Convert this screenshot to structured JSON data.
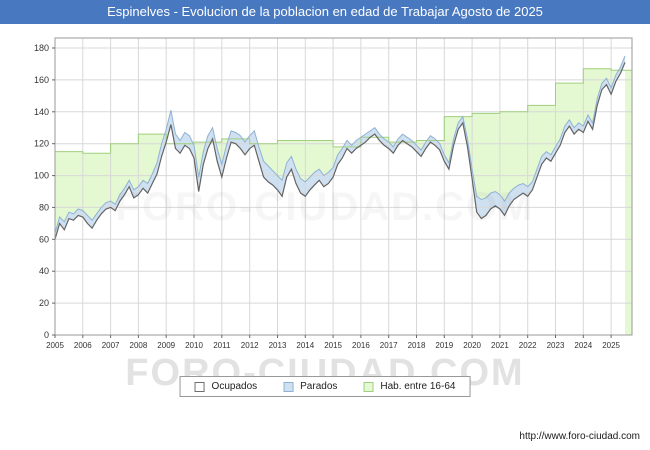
{
  "header": {
    "title": "Espinelves - Evolucion de la poblacion en edad de Trabajar Agosto de 2025",
    "bar_color": "#4878c0"
  },
  "watermark": {
    "text": "FORO-CIUDAD.COM"
  },
  "footer": {
    "url": "http://www.foro-ciudad.com"
  },
  "legend": [
    {
      "label": "Ocupados",
      "fill": "#ffffff",
      "border": "#6e6e6e"
    },
    {
      "label": "Parados",
      "fill": "#cfe0f0",
      "border": "#8fb2d4"
    },
    {
      "label": "Hab. entre 16-64",
      "fill": "#e4f8d2",
      "border": "#a0cf7f"
    }
  ],
  "chart_data": {
    "type": "area",
    "title": "Espinelves - Evolucion de la poblacion en edad de Trabajar Agosto de 2025",
    "xlabel": "",
    "ylabel": "",
    "ylim": [
      0,
      180
    ],
    "yticks": [
      0,
      20,
      40,
      60,
      80,
      100,
      120,
      140,
      160,
      180
    ],
    "xticks": [
      2005,
      2006,
      2007,
      2008,
      2009,
      2010,
      2011,
      2012,
      2013,
      2014,
      2015,
      2016,
      2017,
      2018,
      2019,
      2020,
      2021,
      2022,
      2023,
      2024,
      2025
    ],
    "grid": true,
    "legend_position": "bottom",
    "x_start_year": 2005,
    "x_points_per_year": 6,
    "x_end_label": "Agosto 2025",
    "series": [
      {
        "name": "Ocupados",
        "render": "area-line",
        "fill": "#ffffff",
        "line": "#646464",
        "values": [
          60,
          70,
          66,
          73,
          72,
          75,
          74,
          70,
          67,
          72,
          76,
          79,
          80,
          78,
          84,
          88,
          93,
          86,
          88,
          92,
          89,
          95,
          101,
          112,
          121,
          132,
          117,
          114,
          119,
          117,
          111,
          90,
          107,
          117,
          123,
          109,
          99,
          111,
          121,
          120,
          117,
          113,
          117,
          119,
          109,
          99,
          96,
          94,
          91,
          87,
          99,
          104,
          95,
          89,
          87,
          91,
          94,
          97,
          93,
          95,
          99,
          107,
          111,
          117,
          114,
          117,
          119,
          121,
          124,
          126,
          122,
          119,
          117,
          114,
          119,
          122,
          120,
          118,
          115,
          112,
          117,
          121,
          119,
          116,
          109,
          104,
          119,
          129,
          133,
          118,
          98,
          77,
          73,
          75,
          79,
          81,
          79,
          75,
          81,
          85,
          87,
          89,
          87,
          91,
          99,
          107,
          111,
          109,
          114,
          119,
          127,
          131,
          126,
          129,
          127,
          134,
          129,
          144,
          154,
          157,
          151,
          159,
          164,
          171
        ]
      },
      {
        "name": "Parados",
        "render": "stacked-band-above-ocupados",
        "fill": "#cfe0f0",
        "line": "#8fb2d4",
        "values": [
          4,
          4,
          5,
          4,
          4,
          4,
          4,
          5,
          5,
          4,
          4,
          4,
          4,
          4,
          4,
          4,
          4,
          5,
          5,
          5,
          6,
          6,
          7,
          8,
          8,
          9,
          9,
          8,
          8,
          8,
          8,
          9,
          8,
          8,
          7,
          8,
          8,
          8,
          7,
          7,
          8,
          8,
          8,
          9,
          9,
          10,
          10,
          9,
          9,
          10,
          9,
          8,
          9,
          9,
          9,
          8,
          8,
          7,
          7,
          7,
          6,
          6,
          6,
          5,
          5,
          5,
          5,
          5,
          4,
          4,
          4,
          4,
          4,
          4,
          4,
          4,
          4,
          4,
          4,
          4,
          4,
          4,
          4,
          4,
          4,
          4,
          4,
          4,
          4,
          5,
          6,
          10,
          12,
          11,
          10,
          9,
          9,
          9,
          8,
          7,
          7,
          6,
          6,
          5,
          5,
          5,
          4,
          4,
          4,
          4,
          4,
          4,
          4,
          4,
          4,
          4,
          4,
          4,
          4,
          4,
          4,
          4,
          4,
          4
        ]
      },
      {
        "name": "Hab. entre 16-64",
        "render": "step-area-annual",
        "fill": "#e4f8d2",
        "line": "#a0cf7f",
        "years": [
          2005,
          2006,
          2007,
          2008,
          2009,
          2010,
          2011,
          2012,
          2013,
          2014,
          2015,
          2016,
          2017,
          2018,
          2019,
          2020,
          2021,
          2022,
          2023,
          2024,
          2025
        ],
        "values": [
          115,
          114,
          120,
          126,
          120,
          121,
          123,
          120,
          122,
          122,
          118,
          124,
          121,
          122,
          137,
          139,
          140,
          144,
          158,
          167,
          166
        ]
      }
    ]
  }
}
